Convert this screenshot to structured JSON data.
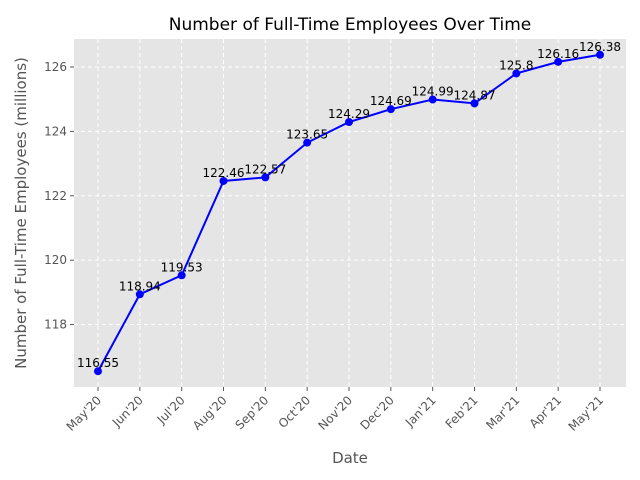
{
  "chart_data": {
    "type": "line",
    "title": "Number of Full-Time Employees Over Time",
    "xlabel": "Date",
    "ylabel": "Number of Full-Time Employees (millions)",
    "categories": [
      "May'20",
      "Jun'20",
      "Jul'20",
      "Aug'20",
      "Sep'20",
      "Oct'20",
      "Nov'20",
      "Dec'20",
      "Jan'21",
      "Feb'21",
      "Mar'21",
      "Apr'21",
      "May'21"
    ],
    "series": [
      {
        "values": [
          116.55,
          118.94,
          119.53,
          122.46,
          122.57,
          123.65,
          124.29,
          124.69,
          124.99,
          124.87,
          125.8,
          126.16,
          126.38
        ],
        "labels": [
          "116.55",
          "118.94",
          "119.53",
          "122.46",
          "122.57",
          "123.65",
          "124.29",
          "124.69",
          "124.99",
          "124.87",
          "125.8",
          "126.16",
          "126.38"
        ],
        "color": "#0000ff",
        "marker": "circle"
      }
    ],
    "yticks": [
      "118",
      "120",
      "122",
      "124",
      "126"
    ],
    "ylim": [
      116.06,
      126.87
    ],
    "grid": true,
    "style": {
      "plot_background": "#e5e5e5",
      "grid_color": "#ffffff",
      "tick_color": "#555555"
    }
  }
}
